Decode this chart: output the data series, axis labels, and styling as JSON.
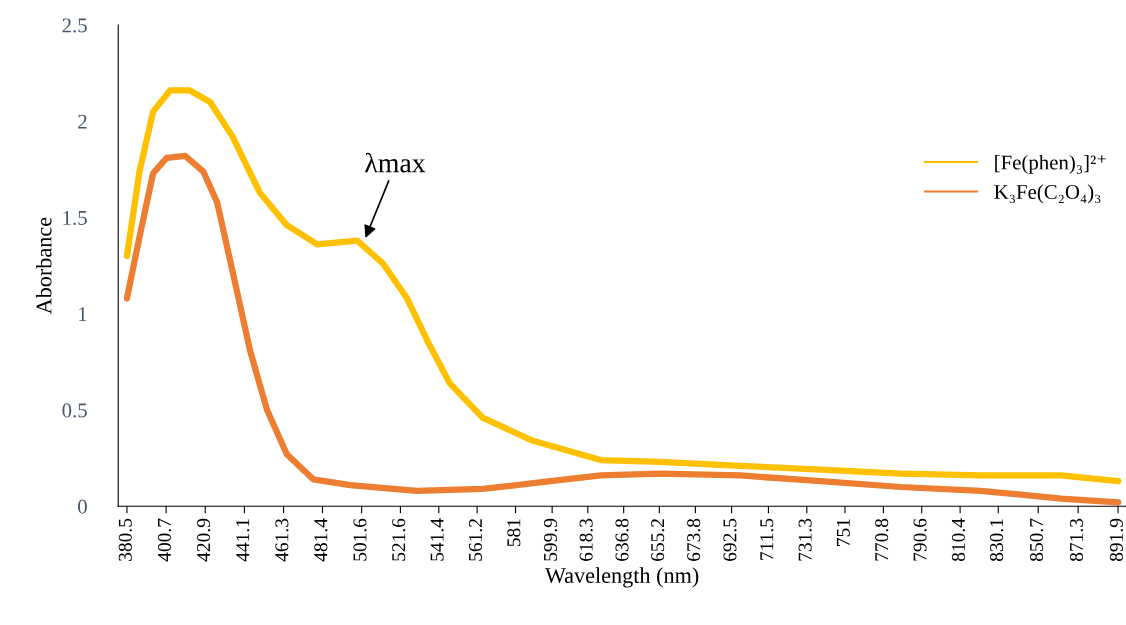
{
  "chart_data": {
    "type": "line",
    "xlabel": "Wavelength (nm)",
    "ylabel": "Aborbance",
    "xlim": [
      376,
      896
    ],
    "ylim": [
      0,
      2.5
    ],
    "yticks": [
      0,
      0.5,
      1,
      1.5,
      2,
      2.5
    ],
    "xticks": [
      380.5,
      400.7,
      420.9,
      441.1,
      461.3,
      481.4,
      501.6,
      521.6,
      541.4,
      561.2,
      581,
      599.9,
      618.3,
      636.8,
      655.2,
      673.8,
      692.5,
      711.5,
      731.3,
      751,
      770.8,
      790.6,
      810.4,
      830.1,
      850.7,
      871.3,
      891.9
    ],
    "grid": false,
    "legend": "right",
    "marker": "none",
    "line_style": "solid",
    "annotations": [
      {
        "text": "λmax",
        "x": 503,
        "y": 1.38
      }
    ],
    "series": [
      {
        "name": "[Fe(phen)₃]²⁺",
        "color": "#ffc000",
        "x": [
          380.5,
          387,
          394,
          402.7,
          413,
          423.4,
          435,
          449,
          463,
          478.7,
          499.3,
          512.7,
          525,
          535.5,
          547,
          564,
          590,
          625,
          655.8,
          697,
          738.5,
          779.8,
          821,
          862.5,
          892
        ],
        "values": [
          1.3,
          1.74,
          2.05,
          2.16,
          2.16,
          2.1,
          1.92,
          1.63,
          1.46,
          1.36,
          1.38,
          1.26,
          1.08,
          0.86,
          0.64,
          0.46,
          0.34,
          0.24,
          0.23,
          0.21,
          0.19,
          0.17,
          0.16,
          0.16,
          0.13
        ]
      },
      {
        "name": "K₃Fe(C₂O₄)₃",
        "color": "#ed7d31",
        "x": [
          380.5,
          387,
          394,
          401,
          410.5,
          419.8,
          427,
          435,
          444,
          452.8,
          463,
          476.6,
          495.7,
          530,
          564,
          599,
          625,
          655.8,
          697,
          738.5,
          779.8,
          821,
          862.5,
          892
        ],
        "values": [
          1.08,
          1.4,
          1.73,
          1.81,
          1.82,
          1.74,
          1.58,
          1.22,
          0.81,
          0.5,
          0.27,
          0.14,
          0.11,
          0.08,
          0.09,
          0.13,
          0.16,
          0.17,
          0.16,
          0.13,
          0.1,
          0.08,
          0.04,
          0.02
        ]
      }
    ]
  }
}
